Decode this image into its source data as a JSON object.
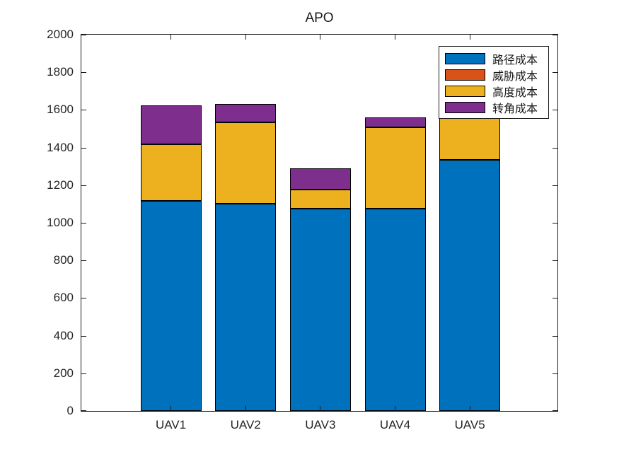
{
  "title": "APO",
  "axes": {
    "y_tick_labels": [
      "0",
      "200",
      "400",
      "600",
      "800",
      "1000",
      "1200",
      "1400",
      "1600",
      "1800",
      "2000"
    ],
    "x_tick_labels": [
      "UAV1",
      "UAV2",
      "UAV3",
      "UAV4",
      "UAV5"
    ]
  },
  "chart_data": {
    "type": "bar",
    "stacked": true,
    "title": "APO",
    "categories": [
      "UAV1",
      "UAV2",
      "UAV3",
      "UAV4",
      "UAV5"
    ],
    "series": [
      {
        "name": "路径成本",
        "color": "#0072BD",
        "values": [
          1115,
          1100,
          1077,
          1075,
          1333
        ]
      },
      {
        "name": "威胁成本",
        "color": "#D95319",
        "values": [
          0,
          0,
          0,
          0,
          0
        ]
      },
      {
        "name": "高度成本",
        "color": "#EDB120",
        "values": [
          303,
          433,
          98,
          431,
          267
        ]
      },
      {
        "name": "转角成本",
        "color": "#7E2F8E",
        "values": [
          206,
          100,
          116,
          56,
          50
        ]
      }
    ],
    "totals": [
      1624,
      1633,
      1291,
      1562,
      1650
    ],
    "ylim": [
      0,
      2000
    ],
    "ytick_step": 200,
    "xlabel": "",
    "ylabel": "",
    "grid": false,
    "legend_position": "northeast",
    "bar_edge_color": "#000000",
    "axis_color": "#1a1a1a"
  }
}
